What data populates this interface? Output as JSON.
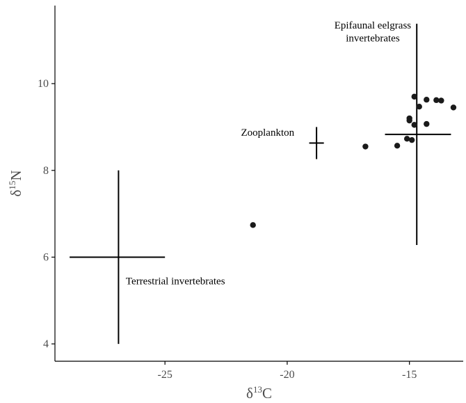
{
  "chart_data": {
    "type": "scatter",
    "title": "",
    "xlabel": {
      "prefix": "δ",
      "sup": "13",
      "suffix": "C"
    },
    "ylabel": {
      "prefix": "δ",
      "sup": "15",
      "suffix": "N"
    },
    "xlim": [
      -29.5,
      -12.8
    ],
    "ylim": [
      3.6,
      11.8
    ],
    "xticks": [
      -25,
      -20,
      -15
    ],
    "yticks": [
      4,
      6,
      8,
      10
    ],
    "grid": false,
    "legend": "none",
    "colors": {
      "points": "#1a1a1a",
      "axis": "#000000",
      "text": "#4d4d4d"
    },
    "points": [
      {
        "x": -21.4,
        "y": 6.74
      },
      {
        "x": -16.8,
        "y": 8.55
      },
      {
        "x": -15.5,
        "y": 8.57
      },
      {
        "x": -15.1,
        "y": 8.73
      },
      {
        "x": -14.9,
        "y": 8.7
      },
      {
        "x": -15.0,
        "y": 9.15
      },
      {
        "x": -15.0,
        "y": 9.2
      },
      {
        "x": -14.8,
        "y": 9.05
      },
      {
        "x": -14.3,
        "y": 9.07
      },
      {
        "x": -14.8,
        "y": 9.7
      },
      {
        "x": -14.6,
        "y": 9.47
      },
      {
        "x": -14.3,
        "y": 9.63
      },
      {
        "x": -13.9,
        "y": 9.62
      },
      {
        "x": -13.7,
        "y": 9.61
      },
      {
        "x": -13.2,
        "y": 9.45
      }
    ],
    "crosses": [
      {
        "x": -26.9,
        "y": 6.0,
        "x_range": [
          -28.9,
          -25.0
        ],
        "y_range": [
          4.0,
          8.0
        ]
      },
      {
        "x": -18.8,
        "y": 8.63,
        "x_range": [
          -19.1,
          -18.5
        ],
        "y_range": [
          8.26,
          9.0
        ]
      },
      {
        "x": -14.7,
        "y": 8.83,
        "x_range": [
          -16.0,
          -13.3
        ],
        "y_range": [
          6.28,
          11.38
        ]
      }
    ],
    "annotations": [
      {
        "text": "Terrestrial invertebrates",
        "x": -26.6,
        "y": 5.45,
        "anchor": "start"
      },
      {
        "text": "Zooplankton",
        "x": -20.8,
        "y": 8.88,
        "anchor": "middle"
      },
      {
        "text": "Epifaunal eelgrass",
        "x": -16.5,
        "y": 11.35,
        "anchor": "middle"
      },
      {
        "text": "invertebrates",
        "x": -16.5,
        "y": 11.05,
        "anchor": "middle"
      }
    ]
  }
}
